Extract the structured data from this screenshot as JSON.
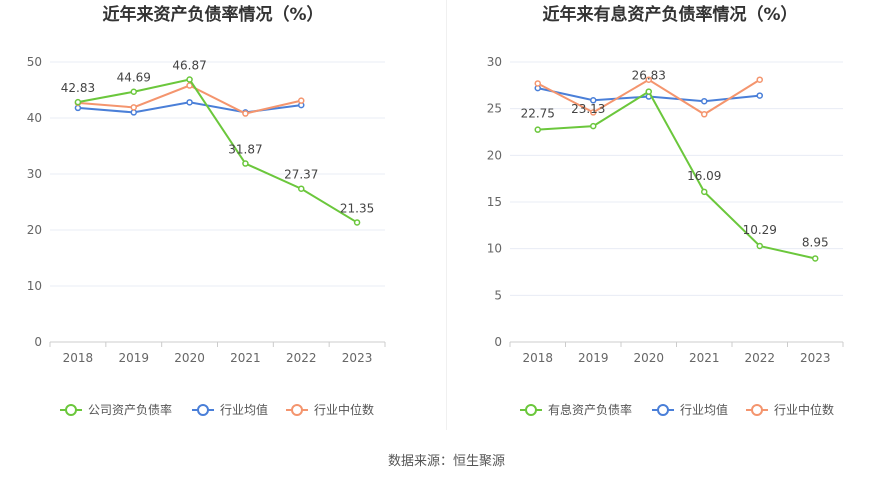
{
  "colors": {
    "company": "#6bc73c",
    "avg": "#4a7fd8",
    "median": "#f4956e"
  },
  "chart_data": [
    {
      "type": "line",
      "title": "近年来资产负债率情况（%）",
      "x": [
        "2018",
        "2019",
        "2020",
        "2021",
        "2022",
        "2023"
      ],
      "ylim": [
        0,
        50
      ],
      "yticks": [
        "0",
        "10",
        "20",
        "30",
        "40",
        "50"
      ],
      "grid": true,
      "legend_position": "bottom",
      "series": [
        {
          "name": "公司资产负债率",
          "key": "company",
          "values": [
            42.83,
            44.69,
            46.87,
            31.87,
            27.37,
            21.35
          ],
          "labels": [
            "42.83",
            "44.69",
            "46.87",
            "31.87",
            "27.37",
            "21.35"
          ]
        },
        {
          "name": "行业均值",
          "key": "avg",
          "values": [
            41.8,
            41.0,
            42.8,
            41.0,
            42.3,
            null
          ]
        },
        {
          "name": "行业中位数",
          "key": "median",
          "values": [
            42.7,
            41.9,
            45.8,
            40.8,
            43.1,
            null
          ]
        }
      ]
    },
    {
      "type": "line",
      "title": "近年来有息资产负债率情况（%）",
      "x": [
        "2018",
        "2019",
        "2020",
        "2021",
        "2022",
        "2023"
      ],
      "ylim": [
        0,
        30
      ],
      "yticks": [
        "0",
        "5",
        "10",
        "15",
        "20",
        "25",
        "30"
      ],
      "grid": true,
      "legend_position": "bottom",
      "series": [
        {
          "name": "有息资产负债率",
          "key": "company",
          "values": [
            22.75,
            23.13,
            26.83,
            16.09,
            10.29,
            8.95
          ],
          "labels": [
            "22.75",
            "23.13",
            "26.83",
            "16.09",
            "10.29",
            "8.95"
          ]
        },
        {
          "name": "行业均值",
          "key": "avg",
          "values": [
            27.2,
            25.9,
            26.3,
            25.8,
            26.4,
            null
          ]
        },
        {
          "name": "行业中位数",
          "key": "median",
          "values": [
            27.7,
            24.6,
            28.1,
            24.4,
            28.1,
            null
          ]
        }
      ]
    }
  ],
  "source": "数据来源：恒生聚源"
}
